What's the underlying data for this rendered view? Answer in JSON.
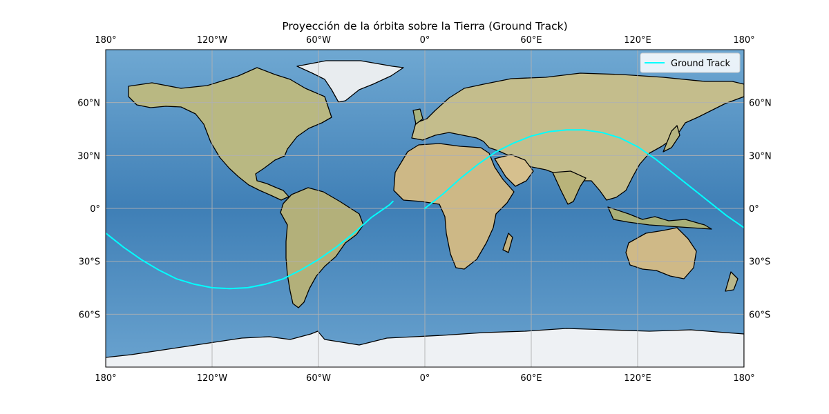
{
  "chart_data": {
    "type": "line",
    "title": "Proyección de la órbita sobre la Tierra (Ground Track)",
    "projection": "plate carree",
    "xlim": [
      -180,
      180
    ],
    "ylim": [
      -90,
      90
    ],
    "grid": true,
    "x_ticks": [
      -180,
      -120,
      -60,
      0,
      60,
      120,
      180
    ],
    "x_tick_labels": [
      "180°",
      "120°W",
      "60°W",
      "0°",
      "60°E",
      "120°E",
      "180°"
    ],
    "y_ticks": [
      60,
      30,
      0,
      -30,
      -60
    ],
    "y_tick_labels": [
      "60°N",
      "30°N",
      "0°",
      "30°S",
      "60°S"
    ],
    "legend_position": "upper-right",
    "series": [
      {
        "name": "Ground Track",
        "color": "#00ffff",
        "segments": [
          {
            "lon": [
              -180,
              -170,
              -160,
              -150,
              -140,
              -130,
              -120,
              -110,
              -100,
              -90,
              -80,
              -70,
              -60,
              -50,
              -40,
              -30,
              -20,
              -18
            ],
            "lat": [
              -14,
              -22,
              -29,
              -35,
              -40,
              -43,
              -45,
              -45.5,
              -45,
              -43,
              -40,
              -35,
              -29,
              -22,
              -14,
              -5,
              2,
              4
            ]
          },
          {
            "lon": [
              0,
              5,
              10,
              20,
              30,
              40,
              50,
              60,
              70,
              80,
              90,
              100,
              110,
              120,
              130,
              140,
              150,
              160,
              170,
              180
            ],
            "lat": [
              0,
              4,
              8,
              17,
              25,
              32,
              37,
              41,
              43.5,
              44.5,
              44.5,
              43,
              40,
              35,
              28,
              20,
              12,
              4,
              -4,
              -11
            ]
          }
        ]
      }
    ]
  }
}
